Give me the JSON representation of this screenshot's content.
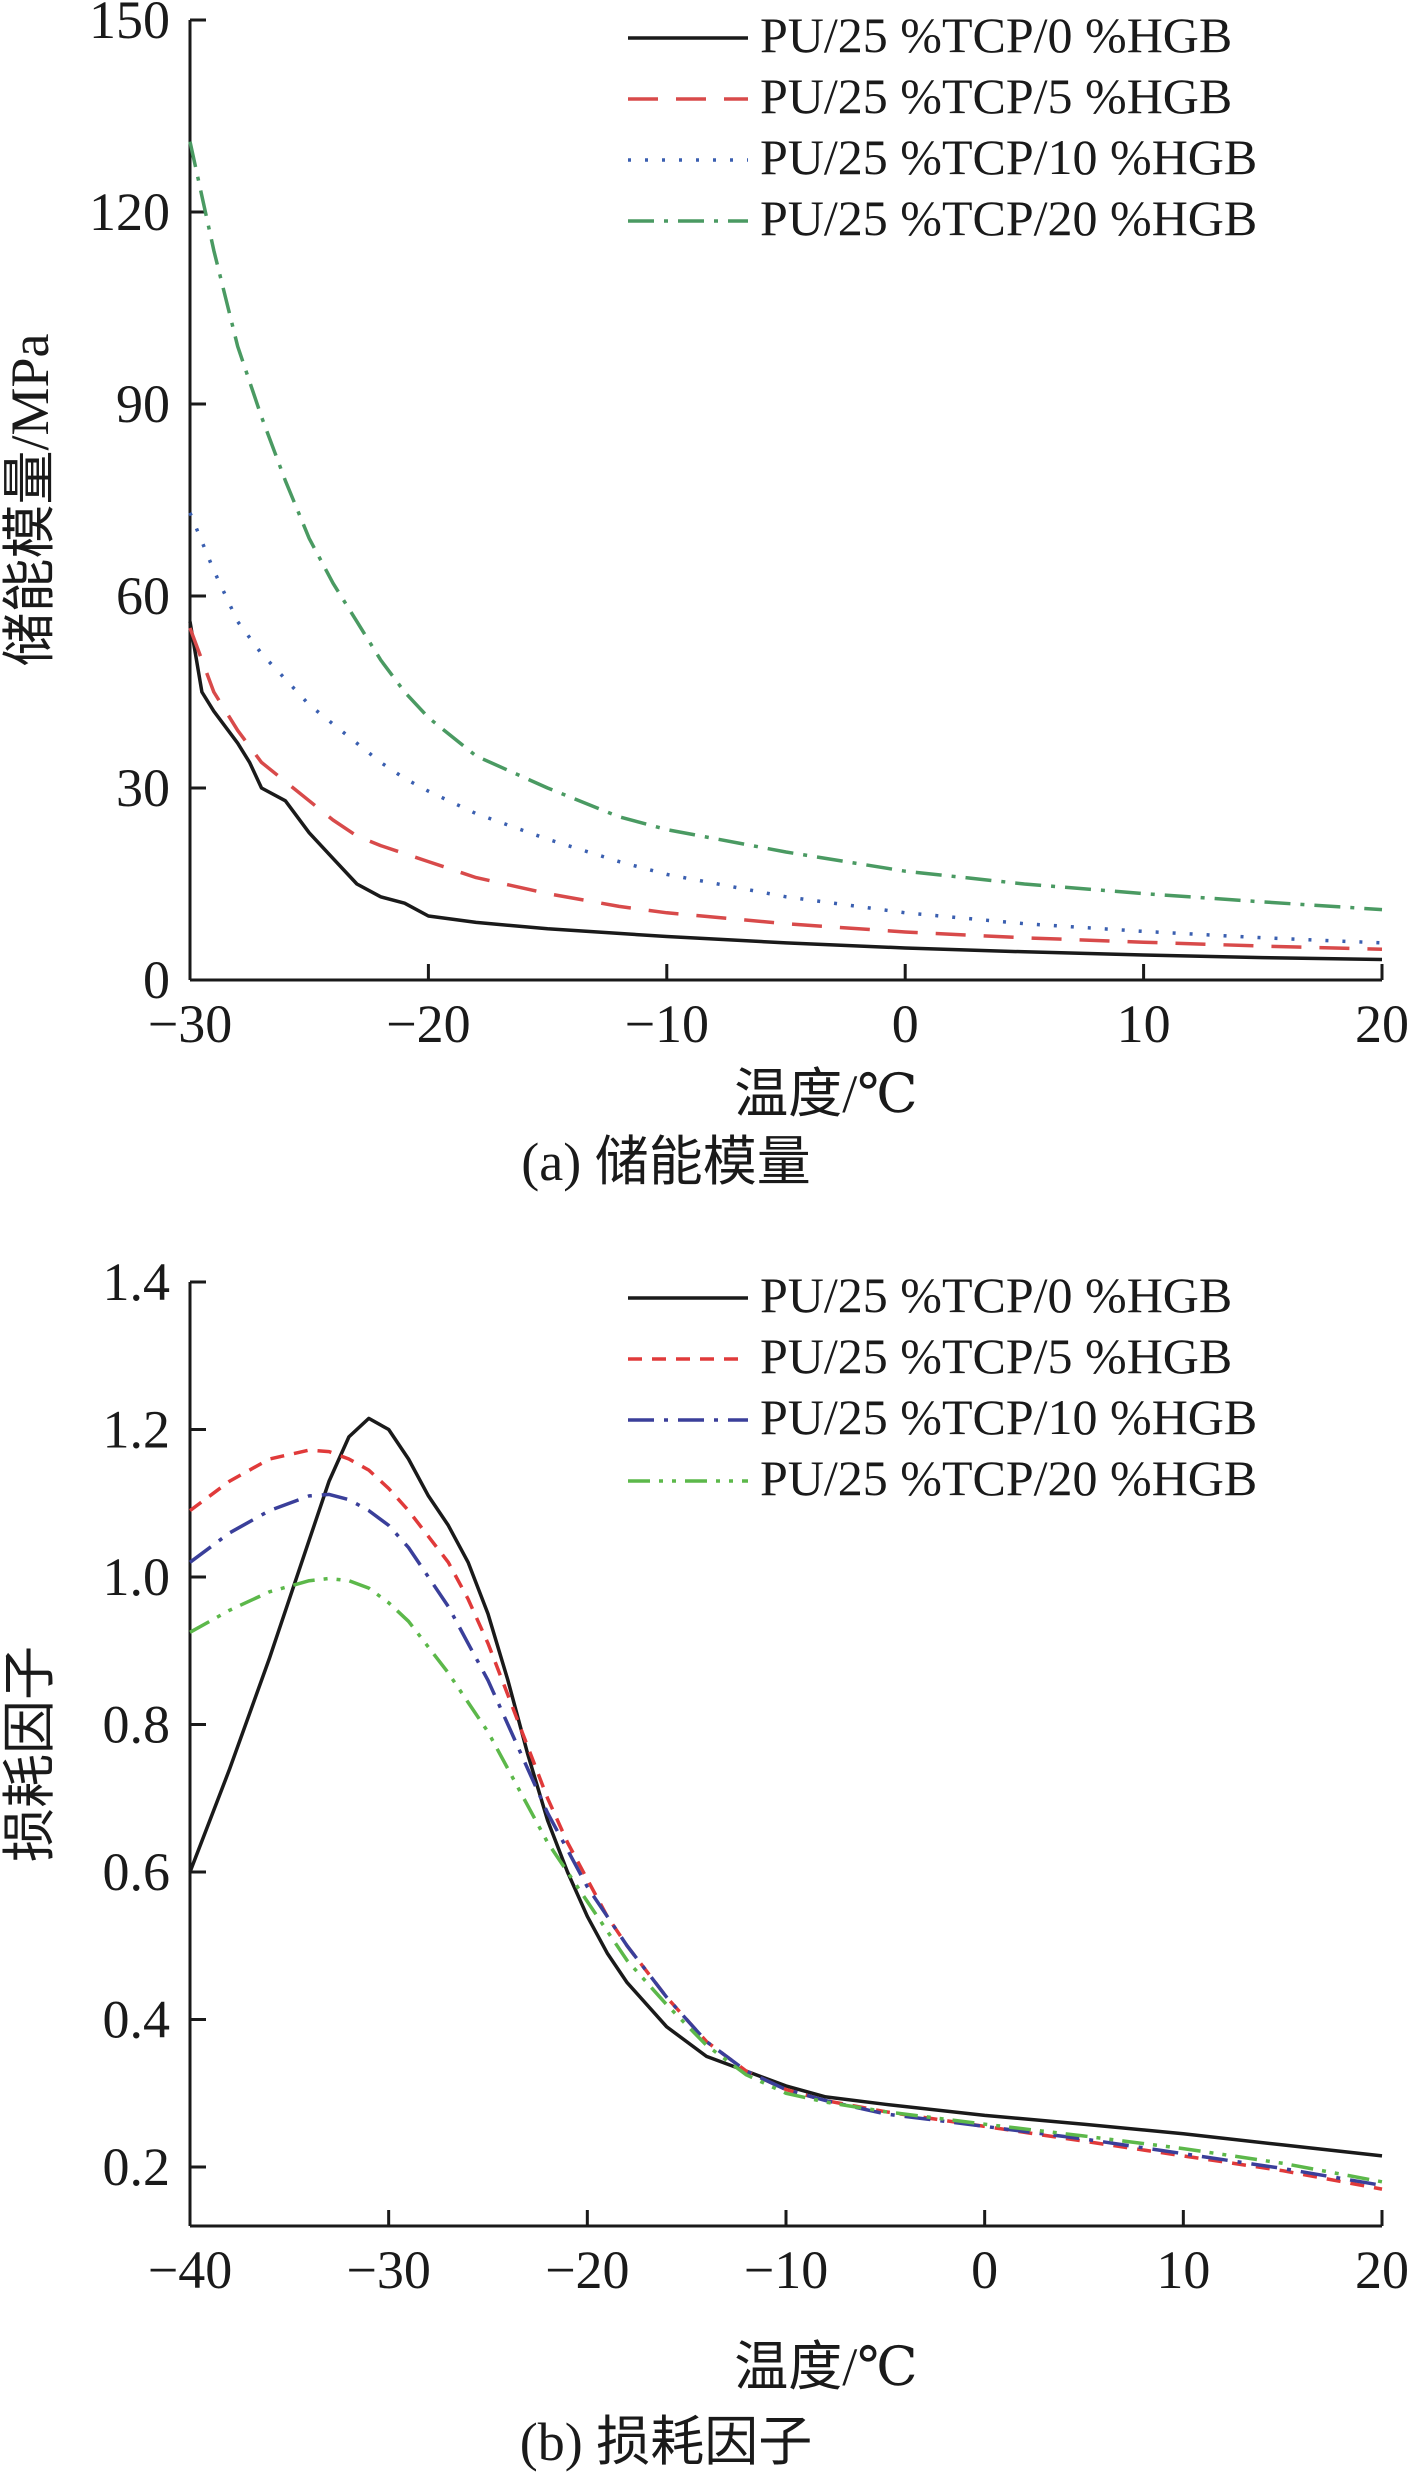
{
  "chart_data": [
    {
      "type": "line",
      "caption": "(a) 储能模量",
      "xlabel": "温度/℃",
      "ylabel": "储能模量/MPa",
      "xlim": [
        -30,
        20
      ],
      "ylim": [
        0,
        150
      ],
      "xticks": [
        -30,
        -20,
        -10,
        0,
        10,
        20
      ],
      "xtick_labels": [
        "−30",
        "−20",
        "−10",
        "0",
        "10",
        "20"
      ],
      "yticks": [
        0,
        30,
        60,
        90,
        120,
        150
      ],
      "ytick_labels": [
        "0",
        "30",
        "60",
        "90",
        "120",
        "150"
      ],
      "legend_position": "top-right",
      "grid": false,
      "series": [
        {
          "name": "PU/25 %TCP/0 %HGB",
          "color": "#1a1a1a",
          "dash": "solid",
          "points": [
            [
              -30,
              56
            ],
            [
              -29.5,
              45
            ],
            [
              -29,
              42
            ],
            [
              -28,
              37
            ],
            [
              -27.5,
              34
            ],
            [
              -27,
              30
            ],
            [
              -26,
              28
            ],
            [
              -25,
              23
            ],
            [
              -24,
              19
            ],
            [
              -23,
              15
            ],
            [
              -22,
              13
            ],
            [
              -21,
              12
            ],
            [
              -20,
              10
            ],
            [
              -18,
              9
            ],
            [
              -15,
              8
            ],
            [
              -10,
              6.8
            ],
            [
              -5,
              5.8
            ],
            [
              0,
              5
            ],
            [
              5,
              4.4
            ],
            [
              10,
              3.9
            ],
            [
              15,
              3.5
            ],
            [
              20,
              3.2
            ]
          ]
        },
        {
          "name": "PU/25 %TCP/5 %HGB",
          "color": "#d84a4a",
          "dash": "long-dash",
          "points": [
            [
              -30,
              55
            ],
            [
              -29,
              45
            ],
            [
              -28,
              39
            ],
            [
              -27,
              34
            ],
            [
              -26,
              31
            ],
            [
              -25,
              28
            ],
            [
              -24,
              25
            ],
            [
              -23,
              22.5
            ],
            [
              -22,
              21
            ],
            [
              -20,
              18.5
            ],
            [
              -18,
              16
            ],
            [
              -15,
              13.5
            ],
            [
              -12,
              11.5
            ],
            [
              -10,
              10.5
            ],
            [
              -5,
              8.8
            ],
            [
              0,
              7.5
            ],
            [
              5,
              6.6
            ],
            [
              10,
              5.9
            ],
            [
              15,
              5.3
            ],
            [
              20,
              4.8
            ]
          ]
        },
        {
          "name": "PU/25 %TCP/10 %HGB",
          "color": "#3a5fb0",
          "dash": "dotted",
          "points": [
            [
              -30,
              73
            ],
            [
              -29,
              64
            ],
            [
              -28,
              56
            ],
            [
              -27,
              51
            ],
            [
              -26,
              47
            ],
            [
              -25,
              43
            ],
            [
              -24,
              40
            ],
            [
              -23,
              37
            ],
            [
              -22,
              34
            ],
            [
              -21,
              31.5
            ],
            [
              -20,
              29.5
            ],
            [
              -18,
              26
            ],
            [
              -15,
              22
            ],
            [
              -12,
              18.5
            ],
            [
              -10,
              16.5
            ],
            [
              -5,
              13
            ],
            [
              0,
              10.5
            ],
            [
              5,
              8.8
            ],
            [
              10,
              7.6
            ],
            [
              15,
              6.6
            ],
            [
              20,
              5.8
            ]
          ]
        },
        {
          "name": "PU/25 %TCP/20 %HGB",
          "color": "#4a9a62",
          "dash": "dash-dot",
          "points": [
            [
              -30,
              131
            ],
            [
              -29,
              114
            ],
            [
              -28,
              99
            ],
            [
              -27,
              88
            ],
            [
              -26,
              78
            ],
            [
              -25,
              69
            ],
            [
              -24,
              62
            ],
            [
              -23,
              56
            ],
            [
              -22,
              50
            ],
            [
              -21,
              45
            ],
            [
              -20,
              41
            ],
            [
              -18,
              35
            ],
            [
              -15,
              30
            ],
            [
              -12,
              25.5
            ],
            [
              -10,
              23.5
            ],
            [
              -5,
              20
            ],
            [
              0,
              17
            ],
            [
              5,
              15
            ],
            [
              10,
              13.5
            ],
            [
              15,
              12.2
            ],
            [
              20,
              11
            ]
          ]
        }
      ]
    },
    {
      "type": "line",
      "caption": "(b) 损耗因子",
      "xlabel": "温度/℃",
      "ylabel": "损耗因子",
      "xlim": [
        -40,
        20
      ],
      "ylim": [
        0.12,
        1.4
      ],
      "xticks": [
        -40,
        -30,
        -20,
        -10,
        0,
        10,
        20
      ],
      "xtick_labels": [
        "−40",
        "−30",
        "−20",
        "−10",
        "0",
        "10",
        "20"
      ],
      "yticks": [
        0.2,
        0.4,
        0.6,
        0.8,
        1.0,
        1.2,
        1.4
      ],
      "ytick_labels": [
        "0.2",
        "0.4",
        "0.6",
        "0.8",
        "1.0",
        "1.2",
        "1.4"
      ],
      "legend_position": "top-right",
      "grid": false,
      "series": [
        {
          "name": "PU/25 %TCP/0 %HGB",
          "color": "#1a1a1a",
          "dash": "solid",
          "points": [
            [
              -40,
              0.6
            ],
            [
              -38,
              0.74
            ],
            [
              -36,
              0.89
            ],
            [
              -34,
              1.05
            ],
            [
              -33,
              1.13
            ],
            [
              -32,
              1.19
            ],
            [
              -31,
              1.215
            ],
            [
              -30,
              1.2
            ],
            [
              -29,
              1.16
            ],
            [
              -28,
              1.11
            ],
            [
              -27,
              1.07
            ],
            [
              -26,
              1.02
            ],
            [
              -25,
              0.95
            ],
            [
              -24,
              0.86
            ],
            [
              -23,
              0.76
            ],
            [
              -22,
              0.67
            ],
            [
              -21,
              0.6
            ],
            [
              -20,
              0.54
            ],
            [
              -19,
              0.49
            ],
            [
              -18,
              0.45
            ],
            [
              -16,
              0.39
            ],
            [
              -14,
              0.35
            ],
            [
              -12,
              0.33
            ],
            [
              -10,
              0.31
            ],
            [
              -8,
              0.295
            ],
            [
              -5,
              0.285
            ],
            [
              0,
              0.27
            ],
            [
              5,
              0.258
            ],
            [
              10,
              0.245
            ],
            [
              15,
              0.23
            ],
            [
              20,
              0.215
            ]
          ]
        },
        {
          "name": "PU/25 %TCP/5 %HGB",
          "color": "#e03a3a",
          "dash": "short-dash",
          "points": [
            [
              -40,
              1.09
            ],
            [
              -38,
              1.13
            ],
            [
              -36,
              1.16
            ],
            [
              -34,
              1.172
            ],
            [
              -33,
              1.17
            ],
            [
              -32,
              1.16
            ],
            [
              -31,
              1.145
            ],
            [
              -30,
              1.12
            ],
            [
              -29,
              1.09
            ],
            [
              -28,
              1.055
            ],
            [
              -27,
              1.02
            ],
            [
              -26,
              0.97
            ],
            [
              -25,
              0.91
            ],
            [
              -24,
              0.84
            ],
            [
              -23,
              0.77
            ],
            [
              -22,
              0.7
            ],
            [
              -21,
              0.64
            ],
            [
              -20,
              0.59
            ],
            [
              -19,
              0.54
            ],
            [
              -18,
              0.5
            ],
            [
              -16,
              0.43
            ],
            [
              -14,
              0.37
            ],
            [
              -12,
              0.33
            ],
            [
              -10,
              0.305
            ],
            [
              -8,
              0.29
            ],
            [
              -5,
              0.275
            ],
            [
              0,
              0.255
            ],
            [
              5,
              0.235
            ],
            [
              10,
              0.215
            ],
            [
              15,
              0.195
            ],
            [
              20,
              0.17
            ]
          ]
        },
        {
          "name": "PU/25 %TCP/10 %HGB",
          "color": "#3a3f9a",
          "dash": "dash-dot",
          "points": [
            [
              -40,
              1.02
            ],
            [
              -38,
              1.06
            ],
            [
              -36,
              1.09
            ],
            [
              -34,
              1.11
            ],
            [
              -33,
              1.112
            ],
            [
              -32,
              1.105
            ],
            [
              -31,
              1.09
            ],
            [
              -30,
              1.07
            ],
            [
              -29,
              1.04
            ],
            [
              -28,
              1.0
            ],
            [
              -27,
              0.96
            ],
            [
              -26,
              0.91
            ],
            [
              -25,
              0.86
            ],
            [
              -24,
              0.8
            ],
            [
              -23,
              0.74
            ],
            [
              -22,
              0.68
            ],
            [
              -21,
              0.63
            ],
            [
              -20,
              0.58
            ],
            [
              -19,
              0.54
            ],
            [
              -18,
              0.5
            ],
            [
              -16,
              0.43
            ],
            [
              -14,
              0.37
            ],
            [
              -12,
              0.33
            ],
            [
              -10,
              0.305
            ],
            [
              -8,
              0.29
            ],
            [
              -5,
              0.272
            ],
            [
              0,
              0.255
            ],
            [
              5,
              0.238
            ],
            [
              10,
              0.218
            ],
            [
              15,
              0.198
            ],
            [
              20,
              0.175
            ]
          ]
        },
        {
          "name": "PU/25 %TCP/20 %HGB",
          "color": "#5cb84a",
          "dash": "dash-dot-dot",
          "points": [
            [
              -40,
              0.925
            ],
            [
              -38,
              0.955
            ],
            [
              -36,
              0.98
            ],
            [
              -34,
              0.995
            ],
            [
              -33,
              0.998
            ],
            [
              -32,
              0.995
            ],
            [
              -31,
              0.985
            ],
            [
              -30,
              0.965
            ],
            [
              -29,
              0.94
            ],
            [
              -28,
              0.905
            ],
            [
              -27,
              0.87
            ],
            [
              -26,
              0.83
            ],
            [
              -25,
              0.79
            ],
            [
              -24,
              0.74
            ],
            [
              -23,
              0.69
            ],
            [
              -22,
              0.64
            ],
            [
              -21,
              0.6
            ],
            [
              -20,
              0.56
            ],
            [
              -19,
              0.52
            ],
            [
              -18,
              0.48
            ],
            [
              -16,
              0.42
            ],
            [
              -14,
              0.365
            ],
            [
              -12,
              0.325
            ],
            [
              -10,
              0.3
            ],
            [
              -8,
              0.288
            ],
            [
              -5,
              0.275
            ],
            [
              0,
              0.258
            ],
            [
              5,
              0.242
            ],
            [
              10,
              0.225
            ],
            [
              15,
              0.205
            ],
            [
              20,
              0.18
            ]
          ]
        }
      ]
    }
  ]
}
